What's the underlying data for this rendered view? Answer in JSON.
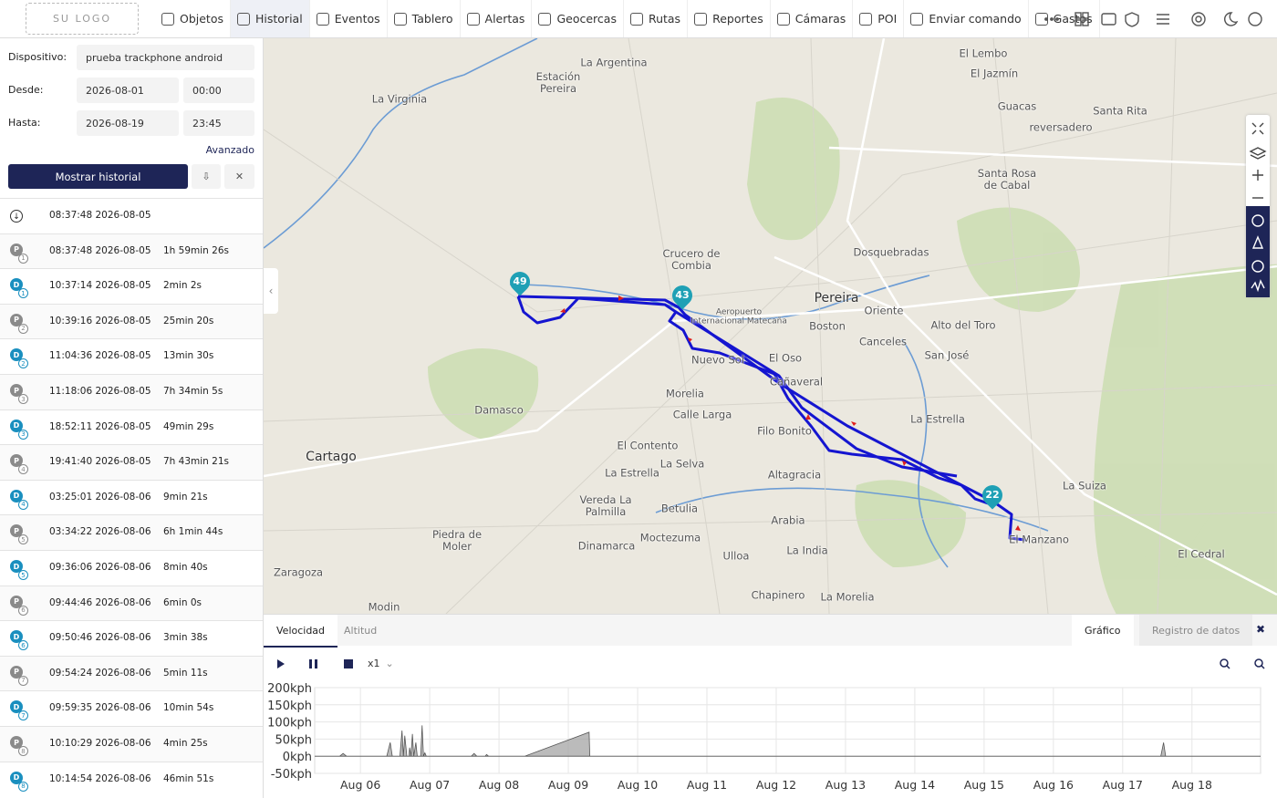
{
  "nav": {
    "logo": "SU LOGO",
    "items": [
      "Objetos",
      "Historial",
      "Eventos",
      "Tablero",
      "Alertas",
      "Geocercas",
      "Rutas",
      "Reportes",
      "Cámaras",
      "POI",
      "Enviar comando",
      "Gastos"
    ],
    "active": "Historial"
  },
  "form": {
    "device_label": "Dispositivo:",
    "device": "prueba trackphone android",
    "from_label": "Desde:",
    "from_date": "2026-08-01",
    "from_time": "00:00",
    "to_label": "Hasta:",
    "to_date": "2026-08-19",
    "to_time": "23:45",
    "advanced": "Avanzado",
    "submit": "Mostrar historial"
  },
  "history": {
    "start": "08:37:48 2026-08-05",
    "rows": [
      {
        "type": "P",
        "index": 1,
        "time": "08:37:48 2026-08-05",
        "duration": "1h 59min 26s"
      },
      {
        "type": "D",
        "index": 1,
        "time": "10:37:14 2026-08-05",
        "duration": "2min 2s"
      },
      {
        "type": "P",
        "index": 2,
        "time": "10:39:16 2026-08-05",
        "duration": "25min 20s"
      },
      {
        "type": "D",
        "index": 2,
        "time": "11:04:36 2026-08-05",
        "duration": "13min 30s"
      },
      {
        "type": "P",
        "index": 3,
        "time": "11:18:06 2026-08-05",
        "duration": "7h 34min 5s"
      },
      {
        "type": "D",
        "index": 3,
        "time": "18:52:11 2026-08-05",
        "duration": "49min 29s"
      },
      {
        "type": "P",
        "index": 4,
        "time": "19:41:40 2026-08-05",
        "duration": "7h 43min 21s"
      },
      {
        "type": "D",
        "index": 4,
        "time": "03:25:01 2026-08-06",
        "duration": "9min 21s"
      },
      {
        "type": "P",
        "index": 5,
        "time": "03:34:22 2026-08-06",
        "duration": "6h 1min 44s"
      },
      {
        "type": "D",
        "index": 5,
        "time": "09:36:06 2026-08-06",
        "duration": "8min 40s"
      },
      {
        "type": "P",
        "index": 6,
        "time": "09:44:46 2026-08-06",
        "duration": "6min 0s"
      },
      {
        "type": "D",
        "index": 6,
        "time": "09:50:46 2026-08-06",
        "duration": "3min 38s"
      },
      {
        "type": "P",
        "index": 7,
        "time": "09:54:24 2026-08-06",
        "duration": "5min 11s"
      },
      {
        "type": "D",
        "index": 7,
        "time": "09:59:35 2026-08-06",
        "duration": "10min 54s"
      },
      {
        "type": "P",
        "index": 8,
        "time": "10:10:29 2026-08-06",
        "duration": "4min 25s"
      },
      {
        "type": "D",
        "index": 8,
        "time": "10:14:54 2026-08-06",
        "duration": "46min 51s"
      }
    ]
  },
  "map": {
    "places": [
      "La Argentina",
      "Estación Pereira",
      "La Virginia",
      "El Lembo",
      "El Jazmín",
      "Guacas",
      "Santa Rita",
      "reversadero",
      "Santa Rosa de Cabal",
      "Crucero de Combia",
      "Dosquebradas",
      "Pereira",
      "Oriente",
      "Aeropuerto Internacional Matecaña",
      "Boston",
      "Alto del Toro",
      "Canceles",
      "San José",
      "El Oso",
      "Nuevo Sol",
      "Cañaveral",
      "Morelia",
      "Calle Larga",
      "Damasco",
      "La Estrella",
      "Filo Bonito",
      "Cartago",
      "El Contento",
      "La Selva",
      "La Estrella",
      "Altagracia",
      "La Suiza",
      "Vereda La Palmilla",
      "Betulia",
      "Arabia",
      "Piedra de Moler",
      "Dinamarca",
      "Moctezuma",
      "El Manzano",
      "Ulloa",
      "La India",
      "El Cedral",
      "Zaragoza",
      "Chapinero",
      "La Morelia",
      "Modin"
    ],
    "markers": [
      49,
      43,
      22
    ]
  },
  "panel": {
    "tabs": [
      "Velocidad",
      "Altitud"
    ],
    "active_tab": "Velocidad",
    "views": [
      "Gráfico",
      "Registro de datos"
    ],
    "speed": "x1"
  },
  "chart_data": {
    "type": "area",
    "color": "#9e9e9e",
    "x": [
      5.34,
      5.7,
      5.75,
      5.8,
      6.38,
      6.43,
      6.46,
      6.57,
      6.6,
      6.62,
      6.64,
      6.67,
      6.7,
      6.71,
      6.73,
      6.75,
      6.77,
      6.8,
      6.82,
      6.87,
      6.89,
      6.91,
      6.93,
      6.95,
      7.6,
      7.64,
      7.68,
      7.8,
      7.82,
      7.85,
      8.37,
      9.3,
      9.31,
      17.55,
      17.59,
      17.62,
      18.99
    ],
    "values": [
      0,
      0,
      8,
      0,
      0,
      40,
      0,
      0,
      75,
      0,
      60,
      0,
      0,
      25,
      0,
      65,
      0,
      40,
      0,
      0,
      90,
      0,
      10,
      0,
      0,
      8,
      0,
      0,
      5,
      0,
      0,
      70,
      0,
      0,
      40,
      0,
      0
    ],
    "xlim": [
      5.34,
      18.99
    ],
    "ylim": [
      -50,
      200
    ],
    "xticks": [
      {
        "value": 6,
        "label": "Aug 06"
      },
      {
        "value": 7,
        "label": "Aug 07"
      },
      {
        "value": 8,
        "label": "Aug 08"
      },
      {
        "value": 9,
        "label": "Aug 09"
      },
      {
        "value": 10,
        "label": "Aug 10"
      },
      {
        "value": 11,
        "label": "Aug 11"
      },
      {
        "value": 12,
        "label": "Aug 12"
      },
      {
        "value": 13,
        "label": "Aug 13"
      },
      {
        "value": 14,
        "label": "Aug 14"
      },
      {
        "value": 15,
        "label": "Aug 15"
      },
      {
        "value": 16,
        "label": "Aug 16"
      },
      {
        "value": 17,
        "label": "Aug 17"
      },
      {
        "value": 18,
        "label": "Aug 18"
      }
    ],
    "yticks": [
      {
        "value": 200,
        "label": "200kph"
      },
      {
        "value": 150,
        "label": "150kph"
      },
      {
        "value": 100,
        "label": "100kph"
      },
      {
        "value": 50,
        "label": "50kph"
      },
      {
        "value": 0,
        "label": "0kph"
      },
      {
        "value": -50,
        "label": "-50kph"
      }
    ],
    "grid": true
  }
}
